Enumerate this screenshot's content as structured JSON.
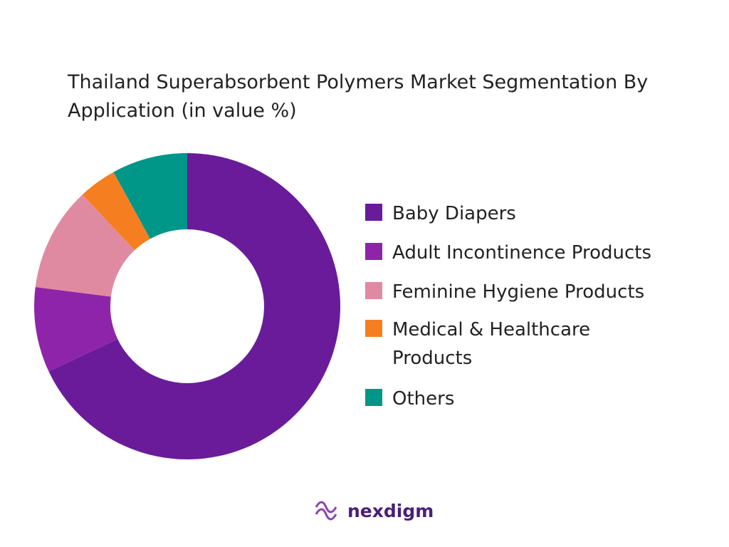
{
  "chart_data": {
    "type": "donut",
    "title": "Thailand Superabsorbent Polymers Market Segmentation By Application (in value %)",
    "categories": [
      "Baby Diapers",
      "Adult Incontinence Products",
      "Feminine Hygiene Products",
      "Medical & Healthcare Products",
      "Others"
    ],
    "values": [
      68,
      9,
      11,
      4,
      8
    ],
    "colors": [
      "#6a1b9a",
      "#8e24aa",
      "#e08aa2",
      "#f57f20",
      "#009688"
    ],
    "legend": "right"
  },
  "brand": "nexdigm"
}
